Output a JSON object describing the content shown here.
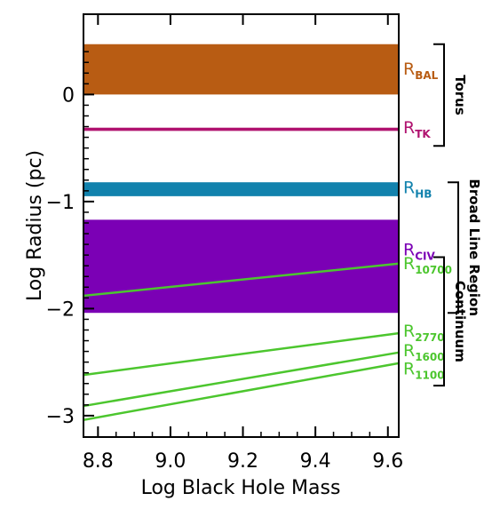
{
  "chart_data": {
    "type": "area",
    "title": "",
    "xlabel": "Log Black Hole Mass",
    "ylabel": "Log Radius (pc)",
    "xlim": [
      8.76,
      9.63
    ],
    "ylim": [
      -3.2,
      0.75
    ],
    "xticks": [
      {
        "value": 8.8,
        "label": "8.8"
      },
      {
        "value": 9.0,
        "label": "9.0"
      },
      {
        "value": 9.2,
        "label": "9.2"
      },
      {
        "value": 9.4,
        "label": "9.4"
      },
      {
        "value": 9.6,
        "label": "9.6"
      }
    ],
    "yticks": [
      {
        "value": 0,
        "label": "0"
      },
      {
        "value": -1,
        "label": "−1"
      },
      {
        "value": -2,
        "label": "−2"
      },
      {
        "value": -3,
        "label": "−3"
      }
    ],
    "bands": [
      {
        "name": "R_BAL",
        "main": "R",
        "sub": "BAL",
        "y_low": 0.0,
        "y_high": 0.47,
        "color": "#b85c13"
      },
      {
        "name": "R_TK",
        "main": "R",
        "sub": "TK",
        "y_low": -0.34,
        "y_high": -0.31,
        "color": "#b0126f"
      },
      {
        "name": "R_HB",
        "main": "R",
        "sub": "HB",
        "y_low": -0.95,
        "y_high": -0.82,
        "color": "#1282ad"
      },
      {
        "name": "R_CIV",
        "main": "R",
        "sub": "CIV",
        "y_low": -2.04,
        "y_high": -1.17,
        "color": "#7b00b5"
      }
    ],
    "series": [
      {
        "name": "R_10700",
        "main": "R",
        "sub": "10700",
        "color": "#4cc62e",
        "x": [
          8.76,
          9.63
        ],
        "y": [
          -1.88,
          -1.58
        ]
      },
      {
        "name": "R_2770",
        "main": "R",
        "sub": "2770",
        "color": "#4cc62e",
        "x": [
          8.76,
          9.63
        ],
        "y": [
          -2.62,
          -2.23
        ]
      },
      {
        "name": "R_1600",
        "main": "R",
        "sub": "1600",
        "color": "#4cc62e",
        "x": [
          8.76,
          9.63
        ],
        "y": [
          -2.91,
          -2.41
        ]
      },
      {
        "name": "R_1100",
        "main": "R",
        "sub": "1100",
        "color": "#4cc62e",
        "x": [
          8.76,
          9.63
        ],
        "y": [
          -3.04,
          -2.51
        ]
      }
    ],
    "regions": [
      {
        "label": "Torus",
        "y_from": 0.47,
        "y_to": -0.48
      },
      {
        "label": "Broad Line Region",
        "y_from": -0.82,
        "y_to": -2.04
      },
      {
        "label": "Continuum",
        "y_from": -1.52,
        "y_to": -2.72
      }
    ],
    "grid": false,
    "legend": "right"
  }
}
